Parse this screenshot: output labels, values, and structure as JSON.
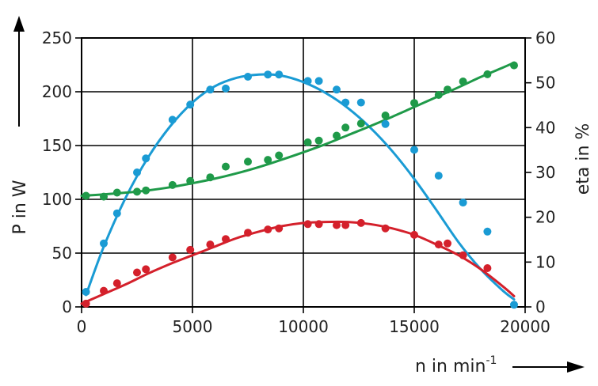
{
  "chart_data": {
    "type": "scatter",
    "x_axis": {
      "label_main": "n in min",
      "label_sup": "-1",
      "range": [
        0,
        20000
      ],
      "ticks": [
        0,
        5000,
        10000,
        15000,
        20000
      ]
    },
    "y_axis_left": {
      "label": "P in W",
      "range": [
        0,
        250
      ],
      "ticks": [
        0,
        50,
        100,
        150,
        200,
        250
      ]
    },
    "y_axis_right": {
      "label": "eta in %",
      "range": [
        0,
        60
      ],
      "ticks": [
        0,
        10,
        20,
        30,
        40,
        50,
        60
      ]
    },
    "grid": true,
    "series": [
      {
        "axis": "left",
        "color": "#1a9bd4",
        "points": [
          [
            200,
            14
          ],
          [
            1000,
            59
          ],
          [
            1600,
            87
          ],
          [
            2500,
            125
          ],
          [
            2900,
            138
          ],
          [
            4100,
            174
          ],
          [
            4900,
            188
          ],
          [
            5800,
            202
          ],
          [
            6500,
            203
          ],
          [
            7500,
            214
          ],
          [
            8400,
            216
          ],
          [
            8900,
            216
          ],
          [
            10200,
            210
          ],
          [
            10700,
            210
          ],
          [
            11500,
            202
          ],
          [
            11900,
            190
          ],
          [
            12600,
            190
          ],
          [
            13700,
            170
          ],
          [
            15000,
            146
          ],
          [
            16100,
            122
          ],
          [
            17200,
            97
          ],
          [
            18300,
            70
          ],
          [
            19500,
            2
          ]
        ],
        "fit": [
          [
            200,
            11
          ],
          [
            1000,
            56
          ],
          [
            2000,
            102
          ],
          [
            3000,
            139
          ],
          [
            4000,
            168
          ],
          [
            5000,
            190
          ],
          [
            6000,
            205
          ],
          [
            7000,
            213
          ],
          [
            8000,
            216
          ],
          [
            9000,
            215
          ],
          [
            10000,
            209
          ],
          [
            11000,
            199
          ],
          [
            12000,
            185
          ],
          [
            13000,
            167
          ],
          [
            14000,
            145
          ],
          [
            15000,
            119
          ],
          [
            16000,
            90
          ],
          [
            17000,
            60
          ],
          [
            18000,
            35
          ],
          [
            19000,
            15
          ],
          [
            19500,
            7
          ]
        ]
      },
      {
        "axis": "left",
        "color": "#d4202b",
        "points": [
          [
            200,
            3
          ],
          [
            1000,
            15
          ],
          [
            1600,
            22
          ],
          [
            2500,
            32
          ],
          [
            2900,
            35
          ],
          [
            4100,
            46
          ],
          [
            4900,
            53
          ],
          [
            5800,
            58
          ],
          [
            6500,
            63
          ],
          [
            7500,
            69
          ],
          [
            8400,
            72
          ],
          [
            8900,
            73
          ],
          [
            10200,
            77
          ],
          [
            10700,
            77
          ],
          [
            11500,
            76
          ],
          [
            11900,
            76
          ],
          [
            12600,
            78
          ],
          [
            13700,
            73
          ],
          [
            15000,
            67
          ],
          [
            16100,
            58
          ],
          [
            16500,
            59
          ],
          [
            17200,
            48
          ],
          [
            18300,
            36
          ]
        ],
        "fit": [
          [
            0,
            3
          ],
          [
            1000,
            12
          ],
          [
            2000,
            21
          ],
          [
            3000,
            31
          ],
          [
            4000,
            40
          ],
          [
            5000,
            48
          ],
          [
            6000,
            56
          ],
          [
            7000,
            64
          ],
          [
            8000,
            70
          ],
          [
            9000,
            75
          ],
          [
            10000,
            78
          ],
          [
            11000,
            79
          ],
          [
            12000,
            79
          ],
          [
            13000,
            77
          ],
          [
            14000,
            73
          ],
          [
            15000,
            67
          ],
          [
            16000,
            58
          ],
          [
            17000,
            48
          ],
          [
            18000,
            35
          ],
          [
            19000,
            19
          ],
          [
            19500,
            10
          ]
        ]
      },
      {
        "axis": "right",
        "color": "#1f9a49",
        "points": [
          [
            200,
            24.8
          ],
          [
            1000,
            24.6
          ],
          [
            1600,
            25.5
          ],
          [
            2500,
            25.7
          ],
          [
            2900,
            26.0
          ],
          [
            4100,
            27.2
          ],
          [
            4900,
            28.1
          ],
          [
            5800,
            28.9
          ],
          [
            6500,
            31.3
          ],
          [
            7500,
            32.4
          ],
          [
            8400,
            32.8
          ],
          [
            8900,
            33.8
          ],
          [
            10200,
            36.7
          ],
          [
            10700,
            37.1
          ],
          [
            11500,
            38.2
          ],
          [
            11900,
            40.0
          ],
          [
            12600,
            40.9
          ],
          [
            13700,
            42.7
          ],
          [
            15000,
            45.5
          ],
          [
            16100,
            47.3
          ],
          [
            16500,
            48.5
          ],
          [
            17200,
            50.3
          ],
          [
            18300,
            51.9
          ],
          [
            19500,
            53.9
          ]
        ],
        "fit": [
          [
            0,
            24.8
          ],
          [
            1000,
            25.1
          ],
          [
            2000,
            25.5
          ],
          [
            3000,
            26.0
          ],
          [
            4000,
            26.7
          ],
          [
            5000,
            27.6
          ],
          [
            6000,
            28.6
          ],
          [
            7000,
            29.8
          ],
          [
            8000,
            31.2
          ],
          [
            9000,
            32.8
          ],
          [
            10000,
            34.5
          ],
          [
            11000,
            36.3
          ],
          [
            12000,
            38.3
          ],
          [
            13000,
            40.3
          ],
          [
            14000,
            42.4
          ],
          [
            15000,
            44.6
          ],
          [
            16000,
            46.8
          ],
          [
            17000,
            49.0
          ],
          [
            18000,
            51.3
          ],
          [
            19000,
            53.4
          ],
          [
            19500,
            54.5
          ]
        ]
      }
    ]
  }
}
